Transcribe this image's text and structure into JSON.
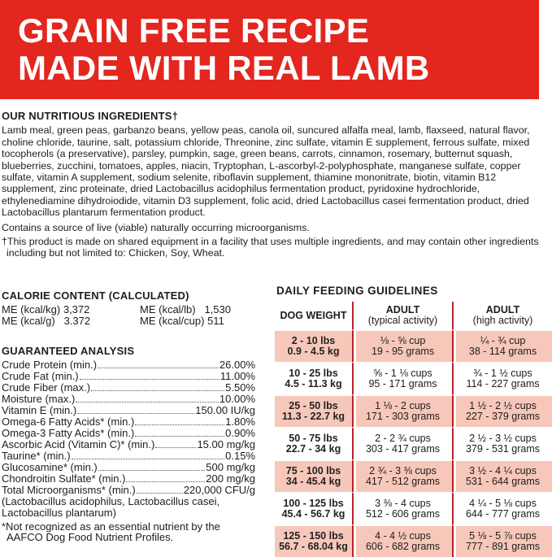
{
  "banner": {
    "line1": "GRAIN FREE RECIPE",
    "line2": "MADE WITH REAL LAMB",
    "color": "#e3261e"
  },
  "ingredients": {
    "heading": "OUR NUTRITIOUS INGREDIENTS†",
    "text": "Lamb meal, green peas, garbanzo beans, yellow peas, canola oil, suncured alfalfa meal, lamb, flaxseed, natural flavor, choline chloride, taurine, salt, potassium chloride, Threonine, zinc sulfate, vitamin E supplement, ferrous sulfate, mixed tocopherols (a preservative), parsley, pumpkin, sage, green beans, carrots, cinnamon, rosemary, butternut squash, blueberries, zucchini, tomatoes, apples, niacin, Tryptophan, L-ascorbyl-2-polyphosphate, manganese sulfate, copper sulfate, vitamin A supplement, sodium selenite, riboflavin supplement, thiamine mononitrate, biotin, vitamin B12 supplement, zinc proteinate, dried Lactobacillus acidophilus fermentation product, pyridoxine hydrochloride, ethylenediamine dihydroiodide, vitamin D3 supplement, folic acid, dried Lactobacillus casei fermentation product, dried Lactobacillus plantarum fermentation product.",
    "live": "Contains a source of live (viable) naturally occurring microorganisms.",
    "footnote": "†This product is made on shared equipment in a facility that uses multiple ingredients, and may contain other ingredients including but not limited to: Chicken, Soy, Wheat."
  },
  "calorie": {
    "heading": "CALORIE CONTENT (CALCULATED)",
    "items": [
      "ME (kcal/kg) 3,372",
      "ME (kcal/lb)   1,530",
      "ME (kcal/g)   3.372",
      "ME (kcal/cup) 511"
    ]
  },
  "analysis": {
    "heading": "GUARANTEED ANALYSIS",
    "rows": [
      {
        "label": "Crude Protein (min.)",
        "value": "26.00%"
      },
      {
        "label": "Crude Fat (min.)",
        "value": "11.00%"
      },
      {
        "label": "Crude Fiber (max.)",
        "value": "5.50%"
      },
      {
        "label": "Moisture (max.)",
        "value": "10.00%"
      },
      {
        "label": "Vitamin E (min.)",
        "value": "150.00 IU/kg"
      },
      {
        "label": "Omega-6 Fatty Acids* (min.)",
        "value": "1.80%"
      },
      {
        "label": "Omega-3 Fatty Acids* (min.)",
        "value": "0.90%"
      },
      {
        "label": "Ascorbic Acid (Vitamin C)* (min.)",
        "value": "15.00 mg/kg"
      },
      {
        "label": "Taurine* (min.)",
        "value": "0.15%"
      },
      {
        "label": "Glucosamine* (min.)",
        "value": "500 mg/kg"
      },
      {
        "label": "Chondroitin Sulfate* (min.)",
        "value": "200 mg/kg"
      },
      {
        "label": "Total Microorganisms* (min.)",
        "value": "220,000 CFU/g"
      }
    ],
    "strains": "(Lactobacillus acidophilus, Lactobacillus casei, Lactobacillus plantarum)",
    "footnote": "*Not recognized as an essential nutrient by the AAFCO Dog Food Nutrient Profiles."
  },
  "feeding": {
    "title": "DAILY FEEDING GUIDELINES",
    "headers": [
      {
        "main": "DOG WEIGHT",
        "sub": ""
      },
      {
        "main": "ADULT",
        "sub": "(typical activity)"
      },
      {
        "main": "ADULT",
        "sub": "(high activity)"
      }
    ],
    "rows": [
      {
        "lbs": "2 - 10 lbs",
        "kg": "0.9 - 4.5 kg",
        "t_cups": "⅛ - ⅝ cup",
        "t_grams": "19 - 95 grams",
        "h_cups": "¼ - ¾ cup",
        "h_grams": "38 - 114 grams"
      },
      {
        "lbs": "10 - 25 lbs",
        "kg": "4.5 - 11.3 kg",
        "t_cups": "⅝ - 1 ⅛ cups",
        "t_grams": "95 - 171 grams",
        "h_cups": "¾ - 1 ½ cups",
        "h_grams": "114 - 227 grams"
      },
      {
        "lbs": "25 - 50 lbs",
        "kg": "11.3 - 22.7 kg",
        "t_cups": "1 ⅛ - 2 cups",
        "t_grams": "171 - 303 grams",
        "h_cups": "1 ½ - 2 ½ cups",
        "h_grams": "227 - 379 grams"
      },
      {
        "lbs": "50 - 75 lbs",
        "kg": "22.7 - 34 kg",
        "t_cups": "2 - 2 ¾ cups",
        "t_grams": "303 - 417 grams",
        "h_cups": "2 ½ - 3 ½ cups",
        "h_grams": "379 - 531 grams"
      },
      {
        "lbs": "75 - 100 lbs",
        "kg": "34 - 45.4 kg",
        "t_cups": "2 ¾ - 3 ⅜ cups",
        "t_grams": "417 - 512 grams",
        "h_cups": "3 ½ - 4 ¼ cups",
        "h_grams": "531 - 644 grams"
      },
      {
        "lbs": "100 - 125 lbs",
        "kg": "45.4 - 56.7 kg",
        "t_cups": "3 ⅜ - 4 cups",
        "t_grams": "512 - 606 grams",
        "h_cups": "4 ¼ - 5 ⅛ cups",
        "h_grams": "644 - 777 grams"
      },
      {
        "lbs": "125 - 150 lbs",
        "kg": "56.7 - 68.04 kg",
        "t_cups": "4 - 4 ½ cups",
        "t_grams": "606 - 682 grams",
        "h_cups": "5 ⅛ - 5 ⅞ cups",
        "h_grams": "777 - 891 grams"
      }
    ]
  }
}
